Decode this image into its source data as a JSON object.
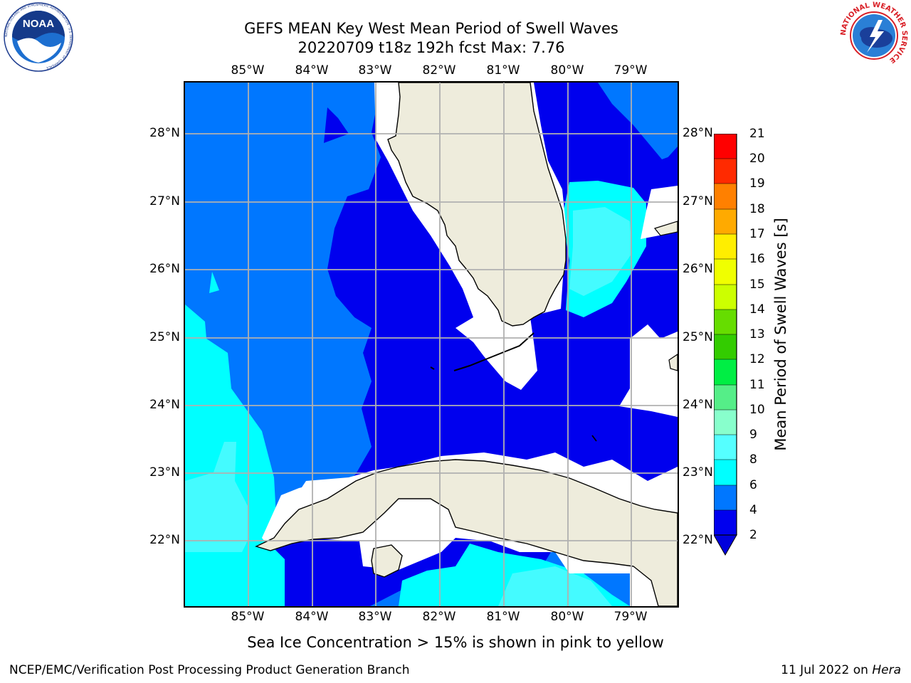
{
  "title_line1": "GEFS MEAN Key West Mean Period of Swell Waves",
  "title_line2": "20220709 t18z 192h fcst   Max: 7.76",
  "lon_labels": [
    "85°W",
    "84°W",
    "83°W",
    "82°W",
    "81°W",
    "80°W",
    "79°W"
  ],
  "lat_labels": [
    "28°N",
    "27°N",
    "26°N",
    "25°N",
    "24°N",
    "23°N",
    "22°N"
  ],
  "colorbar": {
    "label": "Mean Period of Swell Waves [s]",
    "ticks": [
      "21",
      "20",
      "19",
      "18",
      "17",
      "16",
      "15",
      "14",
      "13",
      "12",
      "11",
      "10",
      "9",
      "8",
      "6",
      "4",
      "2"
    ],
    "colors": [
      "#ff0000",
      "#ff2a00",
      "#ff5500",
      "#ff8000",
      "#ffaa00",
      "#ffcc00",
      "#ffee00",
      "#f0ff00",
      "#ccff00",
      "#a6f000",
      "#66dd00",
      "#33cc00",
      "#00dd00",
      "#00ee44",
      "#55ee88",
      "#88ffcc",
      "#9ffff5",
      "#55ffff",
      "#00ffff",
      "#00eeff",
      "#0077ff",
      "#0000ee"
    ],
    "extend_color": "#0000dd"
  },
  "map_colors": {
    "land": "#eeecdc",
    "blue_2_4": "#0077ff",
    "dark_below_2": "#0000ee",
    "cyan_4_6": "#00ffff",
    "aqua_6_8": "#44fbff",
    "no_data": "#ffffff",
    "grid": "#b0b0b0"
  },
  "footnote": "Sea Ice Concentration > 15% is shown in pink to yellow",
  "credit_left": "NCEP/EMC/Verification Post Processing Product Generation Branch",
  "credit_right_prefix": "11 Jul 2022 on ",
  "credit_right_host": "Hera",
  "logos": {
    "noaa": {
      "name": "NOAA",
      "ring_text": "NATIONAL OCEANIC AND ATMOSPHERIC ADMINISTRATION · U.S. DEPARTMENT OF COMMERCE"
    },
    "nws": {
      "ring_text": "NATIONAL WEATHER SERVICE"
    }
  }
}
